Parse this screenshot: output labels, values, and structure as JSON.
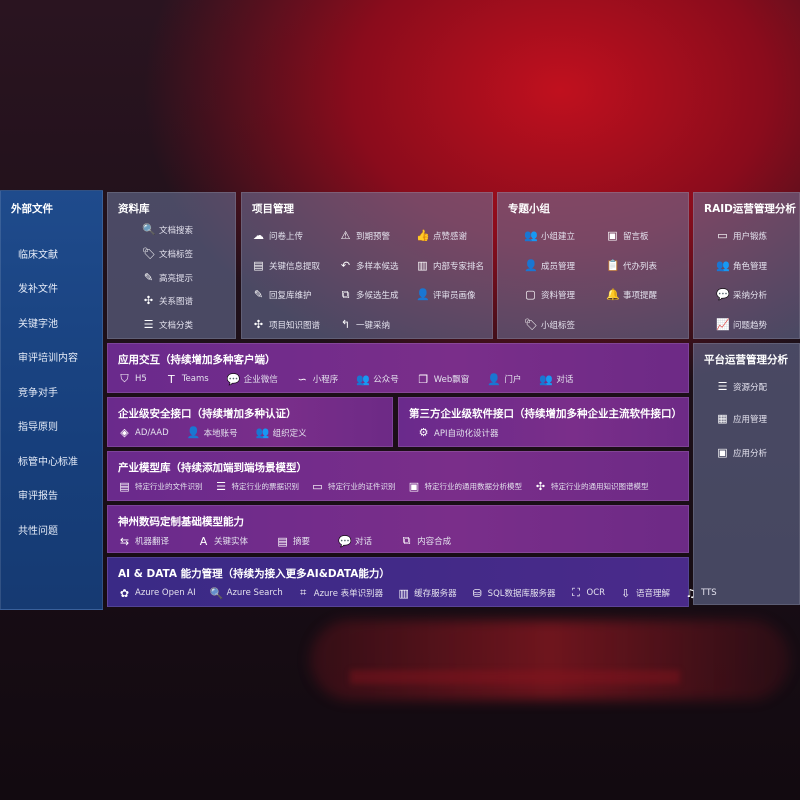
{
  "sidebar": {
    "title": "外部文件",
    "items": [
      "临床文献",
      "发补文件",
      "关键字池",
      "审评培训内容",
      "竞争对手",
      "指导原则",
      "标管中心标准",
      "审评报告",
      "共性问题"
    ]
  },
  "library": {
    "title": "资料库",
    "items": [
      {
        "label": "文档搜索",
        "icon": "doc-search-icon"
      },
      {
        "label": "文档标签",
        "icon": "tag-icon"
      },
      {
        "label": "高亮提示",
        "icon": "pen-icon"
      },
      {
        "label": "关系图谱",
        "icon": "graph-icon"
      },
      {
        "label": "文档分类",
        "icon": "doc-category-icon"
      }
    ]
  },
  "project": {
    "title": "项目管理",
    "items": [
      {
        "label": "问卷上传",
        "icon": "cloud-upload-icon"
      },
      {
        "label": "到期预警",
        "icon": "alarm-icon"
      },
      {
        "label": "点赞感谢",
        "icon": "thumbs-up-icon"
      },
      {
        "label": "关键信息提取",
        "icon": "extract-icon"
      },
      {
        "label": "多样本候选",
        "icon": "reply-all-icon"
      },
      {
        "label": "内部专家排名",
        "icon": "ranking-icon"
      },
      {
        "label": "回复库维护",
        "icon": "edit-icon"
      },
      {
        "label": "多候选生成",
        "icon": "puzzle-icon"
      },
      {
        "label": "评审员画像",
        "icon": "user-icon"
      },
      {
        "label": "项目知识图谱",
        "icon": "graph-icon"
      },
      {
        "label": "一键采纳",
        "icon": "reply-icon"
      }
    ]
  },
  "group": {
    "title": "专题小组",
    "items": [
      {
        "label": "小组建立",
        "icon": "group-icon"
      },
      {
        "label": "留言板",
        "icon": "bbs-icon"
      },
      {
        "label": "成员管理",
        "icon": "member-icon"
      },
      {
        "label": "代办列表",
        "icon": "clipboard-icon"
      },
      {
        "label": "资料管理",
        "icon": "folder-icon"
      },
      {
        "label": "事项提醒",
        "icon": "bell-icon"
      },
      {
        "label": "小组标签",
        "icon": "tag-icon"
      }
    ]
  },
  "raid": {
    "title": "RAID运营管理分析",
    "items": [
      {
        "label": "用户锻炼",
        "icon": "id-card-icon"
      },
      {
        "label": "角色管理",
        "icon": "users-icon"
      },
      {
        "label": "采纳分析",
        "icon": "qa-icon"
      },
      {
        "label": "问题趋势",
        "icon": "trend-icon"
      }
    ]
  },
  "platform": {
    "title": "平台运营管理分析",
    "items": [
      {
        "label": "资源分配",
        "icon": "list-icon"
      },
      {
        "label": "应用管理",
        "icon": "apps-icon"
      },
      {
        "label": "应用分析",
        "icon": "analysis-icon"
      }
    ]
  },
  "interaction": {
    "title": "应用交互（持续增加多种客户端）",
    "items": [
      {
        "label": "H5",
        "icon": "html5-icon"
      },
      {
        "label": "Teams",
        "icon": "teams-icon"
      },
      {
        "label": "企业微信",
        "icon": "wechat-icon"
      },
      {
        "label": "小程序",
        "icon": "miniprogram-icon"
      },
      {
        "label": "公众号",
        "icon": "official-account-icon"
      },
      {
        "label": "Web飘窗",
        "icon": "window-icon"
      },
      {
        "label": "门户",
        "icon": "portal-icon"
      },
      {
        "label": "对话",
        "icon": "chat-icon"
      }
    ]
  },
  "security": {
    "title": "企业级安全接口（持续增加多种认证）",
    "items": [
      {
        "label": "AD/AAD",
        "icon": "ad-icon"
      },
      {
        "label": "本地账号",
        "icon": "account-icon"
      },
      {
        "label": "组织定义",
        "icon": "org-icon"
      }
    ]
  },
  "thirdparty": {
    "title": "第三方企业级软件接口（持续增加多种企业主流软件接口）",
    "items": [
      {
        "label": "API自动化设计器",
        "icon": "api-gear-icon"
      }
    ]
  },
  "industry": {
    "title": "产业模型库（持续添加端到端场景模型）",
    "items": [
      {
        "label": "特定行业的文件识别",
        "icon": "file-icon"
      },
      {
        "label": "特定行业的票据识别",
        "icon": "receipt-icon"
      },
      {
        "label": "特定行业的证件识别",
        "icon": "id-card-icon"
      },
      {
        "label": "特定行业的通用数据分析模型",
        "icon": "chart-icon"
      },
      {
        "label": "特定行业的通用知识图谱模型",
        "icon": "graph-icon"
      }
    ]
  },
  "base": {
    "title": "神州数码定制基础模型能力",
    "items": [
      {
        "label": "机器翻译",
        "icon": "translate-icon"
      },
      {
        "label": "关键实体",
        "icon": "entity-icon"
      },
      {
        "label": "摘要",
        "icon": "summary-icon"
      },
      {
        "label": "对话",
        "icon": "chat-icon"
      },
      {
        "label": "内容合成",
        "icon": "puzzle-icon"
      }
    ]
  },
  "aidata": {
    "title": "AI & DATA 能力管理（持续为接入更多AI&DATA能力）",
    "items": [
      {
        "label": "Azure Open AI",
        "icon": "openai-icon"
      },
      {
        "label": "Azure Search",
        "icon": "search-icon"
      },
      {
        "label": "Azure 表单识别器",
        "icon": "form-icon"
      },
      {
        "label": "缓存服务器",
        "icon": "cache-icon"
      },
      {
        "label": "SQL数据库服务器",
        "icon": "database-icon"
      },
      {
        "label": "OCR",
        "icon": "ocr-icon"
      },
      {
        "label": "语音理解",
        "icon": "speech-icon"
      },
      {
        "label": "TTS",
        "icon": "tts-icon"
      }
    ]
  }
}
